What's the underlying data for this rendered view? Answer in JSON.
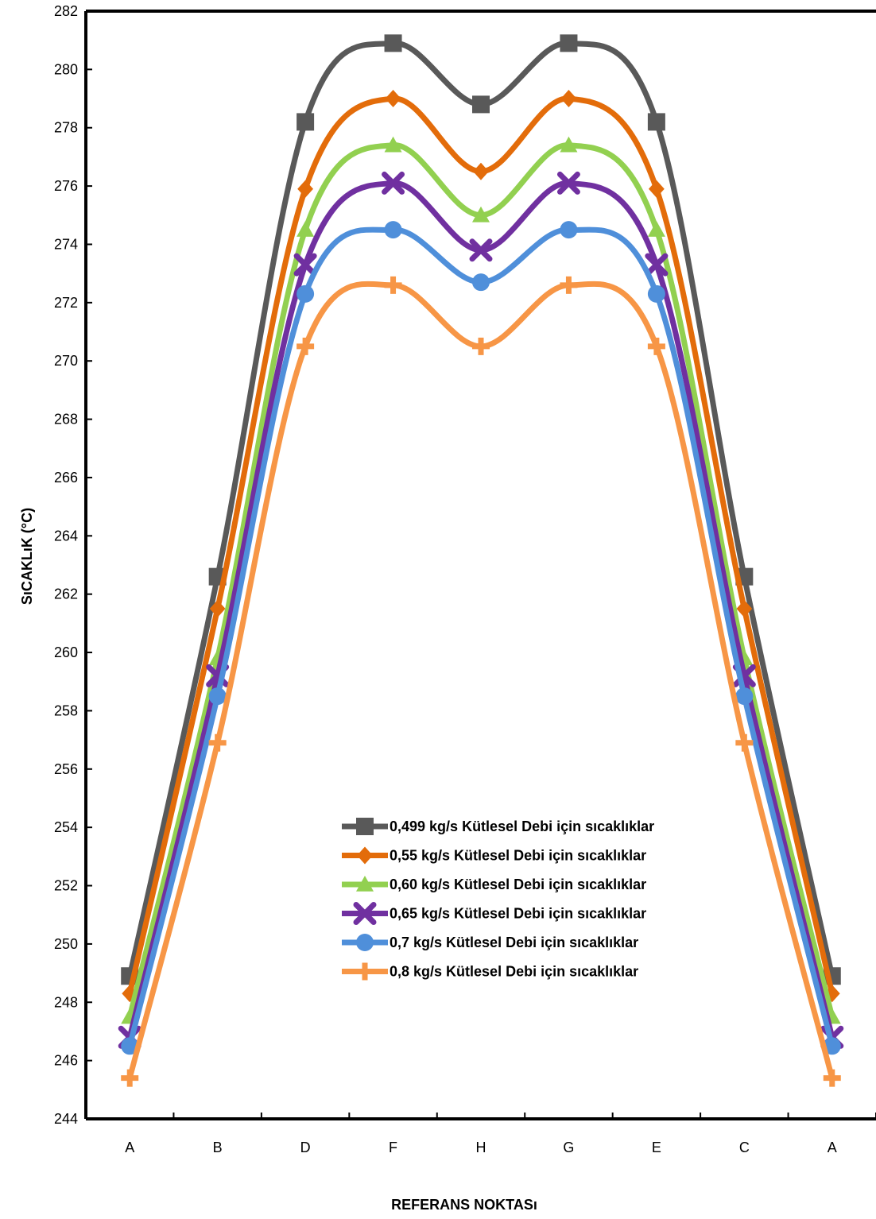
{
  "chart_data": {
    "type": "line",
    "title": "",
    "xlabel": "REFERANS NOKTASı",
    "ylabel": "SıCAKLıK (°C)",
    "ylim": [
      244,
      282
    ],
    "ytick_step": 2,
    "grid": false,
    "smooth": true,
    "legend_position": "lower-center",
    "categories": [
      "A",
      "B",
      "D",
      "F",
      "H",
      "G",
      "E",
      "C",
      "A"
    ],
    "series": [
      {
        "name": "0,499 kg/s Kütlesel Debi için sıcaklıklar",
        "color": "#595959",
        "marker": "square",
        "values": [
          248.9,
          262.6,
          278.2,
          280.9,
          278.8,
          280.9,
          278.2,
          262.6,
          248.9
        ]
      },
      {
        "name": "0,55 kg/s Kütlesel Debi için sıcaklıklar",
        "color": "#E36C0A",
        "marker": "diamond",
        "values": [
          248.3,
          261.5,
          275.9,
          279.0,
          276.5,
          279.0,
          275.9,
          261.5,
          248.3
        ]
      },
      {
        "name": "0,60 kg/s Kütlesel Debi için sıcaklıklar",
        "color": "#92D050",
        "marker": "triangle",
        "values": [
          247.5,
          259.8,
          274.5,
          277.4,
          275.0,
          277.4,
          274.5,
          259.8,
          247.5
        ]
      },
      {
        "name": "0,65 kg/s Kütlesel Debi için sıcaklıklar",
        "color": "#7030A0",
        "marker": "cross",
        "values": [
          246.8,
          259.2,
          273.3,
          276.1,
          273.8,
          276.1,
          273.3,
          259.2,
          246.8
        ]
      },
      {
        "name": "0,7 kg/s Kütlesel Debi için sıcaklıklar",
        "color": "#4F8FDA",
        "marker": "circle",
        "values": [
          246.5,
          258.5,
          272.3,
          274.5,
          272.7,
          274.5,
          272.3,
          258.5,
          246.5
        ]
      },
      {
        "name": "0,8 kg/s Kütlesel Debi için sıcaklıklar",
        "color": "#F79646",
        "marker": "plus",
        "values": [
          245.4,
          256.9,
          270.5,
          272.6,
          270.5,
          272.6,
          270.5,
          256.9,
          245.4
        ]
      }
    ]
  }
}
